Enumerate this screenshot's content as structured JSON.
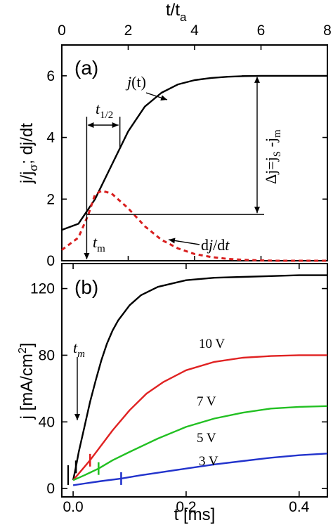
{
  "chart_data": [
    {
      "panel_label": "(a)",
      "type": "line",
      "x_top_label": "t/t",
      "x_top_label_sub": "a",
      "xlim": [
        0,
        8
      ],
      "x_ticks": [
        0,
        2,
        4,
        6,
        8
      ],
      "ylabel_parts": [
        "j/j",
        "σ",
        ";  dj/dt"
      ],
      "ylim": [
        0,
        7
      ],
      "y_ticks": [
        0,
        2,
        4,
        6
      ],
      "grid": false,
      "series": [
        {
          "name": "j(t)",
          "style": "solid",
          "color": "#000000",
          "x": [
            0,
            0.5,
            1,
            1.5,
            2,
            2.5,
            3,
            3.5,
            4,
            4.5,
            5,
            5.5,
            6,
            6.5,
            7,
            7.5,
            8
          ],
          "y": [
            1.0,
            1.2,
            2.0,
            3.1,
            4.2,
            5.0,
            5.45,
            5.72,
            5.86,
            5.93,
            5.97,
            5.99,
            6.0,
            6.0,
            6.0,
            6.0,
            6.0
          ]
        },
        {
          "name": "dj/dt",
          "style": "dashed",
          "color": "#d81e1e",
          "x": [
            0,
            0.5,
            0.8,
            1,
            1.2,
            1.5,
            2,
            2.5,
            3,
            3.5,
            4,
            4.5,
            5,
            5.5,
            6,
            6.5,
            7,
            7.5,
            8
          ],
          "y": [
            0.35,
            0.75,
            1.5,
            2.15,
            2.27,
            2.18,
            1.7,
            1.12,
            0.68,
            0.4,
            0.22,
            0.12,
            0.06,
            0.03,
            0.01,
            0.0,
            0.0,
            0.0,
            0.0
          ]
        }
      ],
      "annotations": {
        "jt_label": "j(t)",
        "djdt_label": "dj/dt",
        "tm_label": "t",
        "tm_sub": "m",
        "thalf_label": "t",
        "thalf_sub": "1/2",
        "delta_j_label": "Δj=j",
        "delta_j_sub1": "S",
        "delta_j_mid": " -j",
        "delta_j_sub2": "m",
        "tm_x": 0.75,
        "j_m": 1.5,
        "j_s": 6.0,
        "thalf_x_end": 1.75
      }
    },
    {
      "panel_label": "(b)",
      "type": "line",
      "xlabel": "t [ms]",
      "ylabel_main": "j [mA/cm",
      "ylabel_sup": "2",
      "ylabel_end": "]",
      "xlim": [
        -0.02,
        0.45
      ],
      "x_ticks": [
        0.0,
        0.2,
        0.4
      ],
      "x_tick_labels": [
        "0.0",
        "0.2",
        "0.4"
      ],
      "ylim": [
        -5,
        135
      ],
      "y_ticks": [
        0,
        40,
        80,
        120
      ],
      "grid": false,
      "tm_label": "t",
      "tm_sub": "m",
      "series": [
        {
          "name": "10 V",
          "color": "#000000",
          "tm_mark": [
            0.005,
            13
          ],
          "x": [
            0.0,
            0.005,
            0.01,
            0.02,
            0.03,
            0.04,
            0.05,
            0.06,
            0.07,
            0.08,
            0.1,
            0.12,
            0.15,
            0.2,
            0.25,
            0.3,
            0.35,
            0.4,
            0.45
          ],
          "y": [
            5,
            13,
            22,
            37,
            52,
            65,
            77,
            87,
            95,
            101,
            110,
            116,
            121,
            125,
            126.5,
            127,
            127.5,
            128,
            128
          ]
        },
        {
          "name": "7 V",
          "color": "#e02222",
          "tm_mark": [
            0.03,
            17
          ],
          "x": [
            0.0,
            0.01,
            0.02,
            0.03,
            0.05,
            0.07,
            0.1,
            0.13,
            0.16,
            0.2,
            0.25,
            0.3,
            0.35,
            0.4,
            0.45
          ],
          "y": [
            5,
            9,
            13,
            17,
            26,
            35,
            47,
            57,
            64,
            71,
            76,
            78.5,
            79.5,
            80,
            80
          ]
        },
        {
          "name": "5 V",
          "color": "#22c022",
          "tm_mark": [
            0.045,
            12
          ],
          "x": [
            0.0,
            0.02,
            0.045,
            0.07,
            0.1,
            0.15,
            0.2,
            0.25,
            0.3,
            0.35,
            0.4,
            0.45
          ],
          "y": [
            5,
            8,
            12,
            17,
            22,
            30,
            37,
            42,
            45.5,
            48,
            49,
            49.5
          ]
        },
        {
          "name": "3 V",
          "color": "#2233cc",
          "tm_mark": [
            0.085,
            6
          ],
          "x": [
            0.0,
            0.02,
            0.05,
            0.085,
            0.12,
            0.16,
            0.2,
            0.25,
            0.3,
            0.35,
            0.4,
            0.45
          ],
          "y": [
            2,
            3,
            4.5,
            6,
            8,
            10,
            12,
            14.5,
            16.5,
            18.5,
            20,
            21
          ]
        }
      ]
    }
  ]
}
